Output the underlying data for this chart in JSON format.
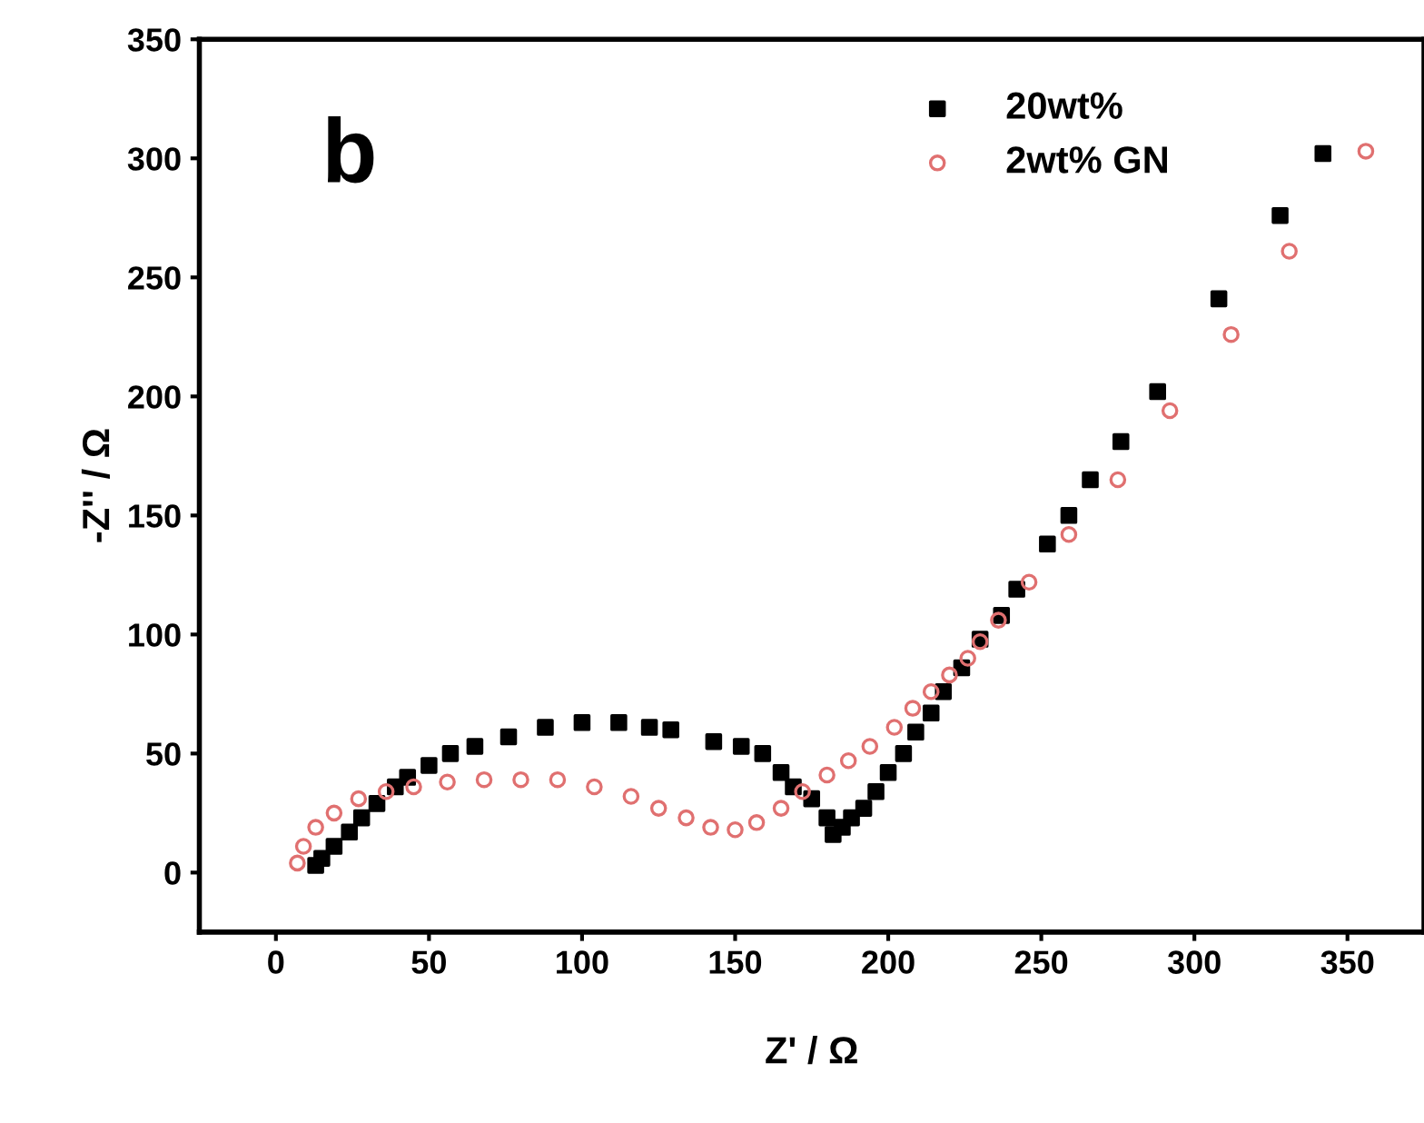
{
  "chart_data": {
    "type": "scatter",
    "xlabel": "Z' / Ω",
    "ylabel": "-Z'' / Ω",
    "annotations": [
      "b"
    ],
    "xlim": [
      -25,
      375
    ],
    "ylim": [
      -25,
      350
    ],
    "xticks": [
      0,
      50,
      100,
      150,
      200,
      250,
      300,
      350
    ],
    "yticks": [
      0,
      50,
      100,
      150,
      200,
      250,
      300,
      350
    ],
    "grid": false,
    "legend": "top right",
    "series": [
      {
        "name": "20wt%",
        "color": "#000000",
        "marker": "square",
        "x": [
          13,
          15,
          19,
          24,
          28,
          33,
          39,
          43,
          50,
          57,
          65,
          76,
          88,
          100,
          112,
          122,
          129,
          143,
          152,
          159,
          165,
          169,
          175,
          180,
          182,
          185,
          188,
          192,
          196,
          200,
          205,
          209,
          214,
          218,
          224,
          230,
          237,
          242,
          252,
          259,
          266,
          276,
          288,
          308,
          328,
          342
        ],
        "values": [
          3,
          6,
          11,
          17,
          23,
          29,
          36,
          40,
          45,
          50,
          53,
          57,
          61,
          63,
          63,
          61,
          60,
          55,
          53,
          50,
          42,
          36,
          31,
          23,
          16,
          19,
          23,
          27,
          34,
          42,
          50,
          59,
          67,
          76,
          86,
          98,
          108,
          119,
          138,
          150,
          165,
          181,
          202,
          241,
          276,
          302
        ]
      },
      {
        "name": "2wt% GN",
        "color": "#e07070",
        "marker": "circle",
        "x": [
          7,
          9,
          13,
          19,
          27,
          36,
          45,
          56,
          68,
          80,
          92,
          104,
          116,
          125,
          134,
          142,
          150,
          157,
          165,
          172,
          180,
          187,
          194,
          202,
          208,
          214,
          220,
          226,
          230,
          236,
          246,
          259,
          275,
          292,
          312,
          331,
          356
        ],
        "values": [
          4,
          11,
          19,
          25,
          31,
          34,
          36,
          38,
          39,
          39,
          39,
          36,
          32,
          27,
          23,
          19,
          18,
          21,
          27,
          34,
          41,
          47,
          53,
          61,
          69,
          76,
          83,
          90,
          97,
          106,
          122,
          142,
          165,
          194,
          226,
          261,
          303
        ]
      }
    ]
  }
}
